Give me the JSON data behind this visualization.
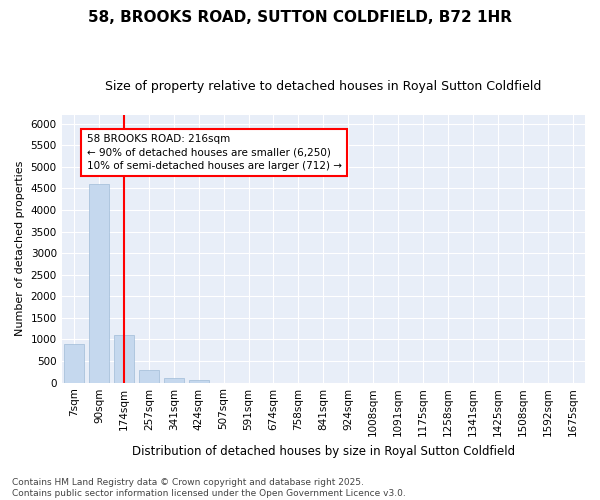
{
  "title": "58, BROOKS ROAD, SUTTON COLDFIELD, B72 1HR",
  "subtitle": "Size of property relative to detached houses in Royal Sutton Coldfield",
  "xlabel": "Distribution of detached houses by size in Royal Sutton Coldfield",
  "ylabel": "Number of detached properties",
  "categories": [
    "7sqm",
    "90sqm",
    "174sqm",
    "257sqm",
    "341sqm",
    "424sqm",
    "507sqm",
    "591sqm",
    "674sqm",
    "758sqm",
    "841sqm",
    "924sqm",
    "1008sqm",
    "1091sqm",
    "1175sqm",
    "1258sqm",
    "1341sqm",
    "1425sqm",
    "1508sqm",
    "1592sqm",
    "1675sqm"
  ],
  "values": [
    900,
    4600,
    1100,
    300,
    100,
    60,
    0,
    0,
    0,
    0,
    0,
    0,
    0,
    0,
    0,
    0,
    0,
    0,
    0,
    0,
    0
  ],
  "bar_color": "#c5d8ee",
  "bar_edge_color": "#a0bcd8",
  "vline_x_index": 2.0,
  "vline_color": "red",
  "annotation_text": "58 BROOKS ROAD: 216sqm\n← 90% of detached houses are smaller (6,250)\n10% of semi-detached houses are larger (712) →",
  "annotation_box_color": "white",
  "annotation_box_edgecolor": "red",
  "ylim": [
    0,
    6200
  ],
  "yticks": [
    0,
    500,
    1000,
    1500,
    2000,
    2500,
    3000,
    3500,
    4000,
    4500,
    5000,
    5500,
    6000
  ],
  "background_color": "#ffffff",
  "plot_bg_color": "#e8eef8",
  "grid_color": "white",
  "footer": "Contains HM Land Registry data © Crown copyright and database right 2025.\nContains public sector information licensed under the Open Government Licence v3.0.",
  "title_fontsize": 11,
  "subtitle_fontsize": 9,
  "xlabel_fontsize": 8.5,
  "ylabel_fontsize": 8,
  "tick_fontsize": 7.5,
  "footer_fontsize": 6.5,
  "annotation_fontsize": 7.5
}
